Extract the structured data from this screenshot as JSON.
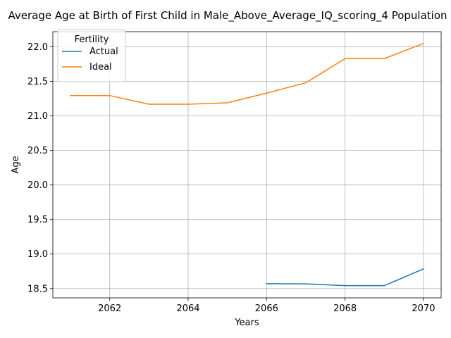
{
  "chart_data": {
    "type": "line",
    "title": "Average Age at Birth of First Child in Male_Above_Average_IQ_scoring_4 Population",
    "xlabel": "Years",
    "ylabel": "Age",
    "xlim": [
      2060.55,
      2070.45
    ],
    "ylim": [
      18.365,
      22.22
    ],
    "xticks": [
      2062,
      2064,
      2066,
      2068,
      2070
    ],
    "yticks": [
      18.5,
      19.0,
      19.5,
      20.0,
      20.5,
      21.0,
      21.5,
      22.0
    ],
    "xtick_labels": [
      "2062",
      "2064",
      "2066",
      "2068",
      "2070"
    ],
    "ytick_labels": [
      "18.5",
      "19.0",
      "19.5",
      "20.0",
      "20.5",
      "21.0",
      "21.5",
      "22.0"
    ],
    "grid": true,
    "legend": {
      "title": "Fertility",
      "placement": "upper-left"
    },
    "series": [
      {
        "name": "Actual",
        "color": "#1f77b4",
        "x": [
          2066,
          2067,
          2068,
          2069,
          2070
        ],
        "y": [
          18.57,
          18.568,
          18.542,
          18.542,
          18.785
        ]
      },
      {
        "name": "Ideal",
        "color": "#ff7f0e",
        "x": [
          2061,
          2062,
          2063,
          2064,
          2065,
          2066,
          2067,
          2068,
          2069,
          2070
        ],
        "y": [
          21.295,
          21.295,
          21.17,
          21.17,
          21.19,
          21.33,
          21.48,
          21.83,
          21.83,
          22.05
        ]
      }
    ]
  }
}
